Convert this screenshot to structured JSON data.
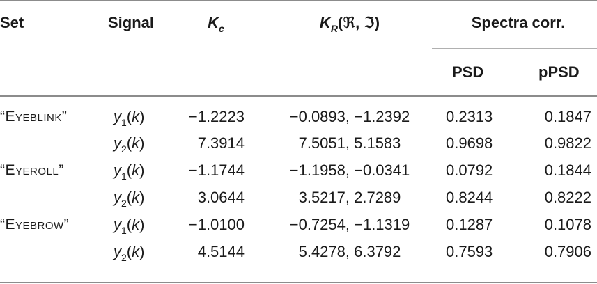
{
  "headers": {
    "set": "Set",
    "signal": "Signal",
    "kc_main": "K",
    "kc_sub": "c",
    "kr_main": "K",
    "kr_sub": "R",
    "kr_args": "(ℜ, ℑ)",
    "spectra_group": "Spectra corr.",
    "psd": "PSD",
    "ppsd": "pPSD"
  },
  "rows": [
    {
      "set": "“Eyeblink”",
      "signal_var": "y",
      "signal_sub": "1",
      "signal_arg": "(k)",
      "kc": "−1.2223",
      "kr": "−0.0893, −1.2392",
      "psd": "0.2313",
      "ppsd": "0.1847"
    },
    {
      "set": "",
      "signal_var": "y",
      "signal_sub": "2",
      "signal_arg": "(k)",
      "kc": "7.3914",
      "kr": "7.5051, 5.1583",
      "psd": "0.9698",
      "ppsd": "0.9822"
    },
    {
      "set": "“Eyeroll”",
      "signal_var": "y",
      "signal_sub": "1",
      "signal_arg": "(k)",
      "kc": "−1.1744",
      "kr": "−1.1958, −0.0341",
      "psd": "0.0792",
      "ppsd": "0.1844"
    },
    {
      "set": "",
      "signal_var": "y",
      "signal_sub": "2",
      "signal_arg": "(k)",
      "kc": "3.0644",
      "kr": "3.5217, 2.7289",
      "psd": "0.8244",
      "ppsd": "0.8222"
    },
    {
      "set": "“Eyebrow”",
      "signal_var": "y",
      "signal_sub": "1",
      "signal_arg": "(k)",
      "kc": "−1.0100",
      "kr": "−0.7254, −1.1319",
      "psd": "0.1287",
      "ppsd": "0.1078"
    },
    {
      "set": "",
      "signal_var": "y",
      "signal_sub": "2",
      "signal_arg": "(k)",
      "kc": "4.5144",
      "kr": "5.4278, 6.3792",
      "psd": "0.7593",
      "ppsd": "0.7906"
    }
  ]
}
